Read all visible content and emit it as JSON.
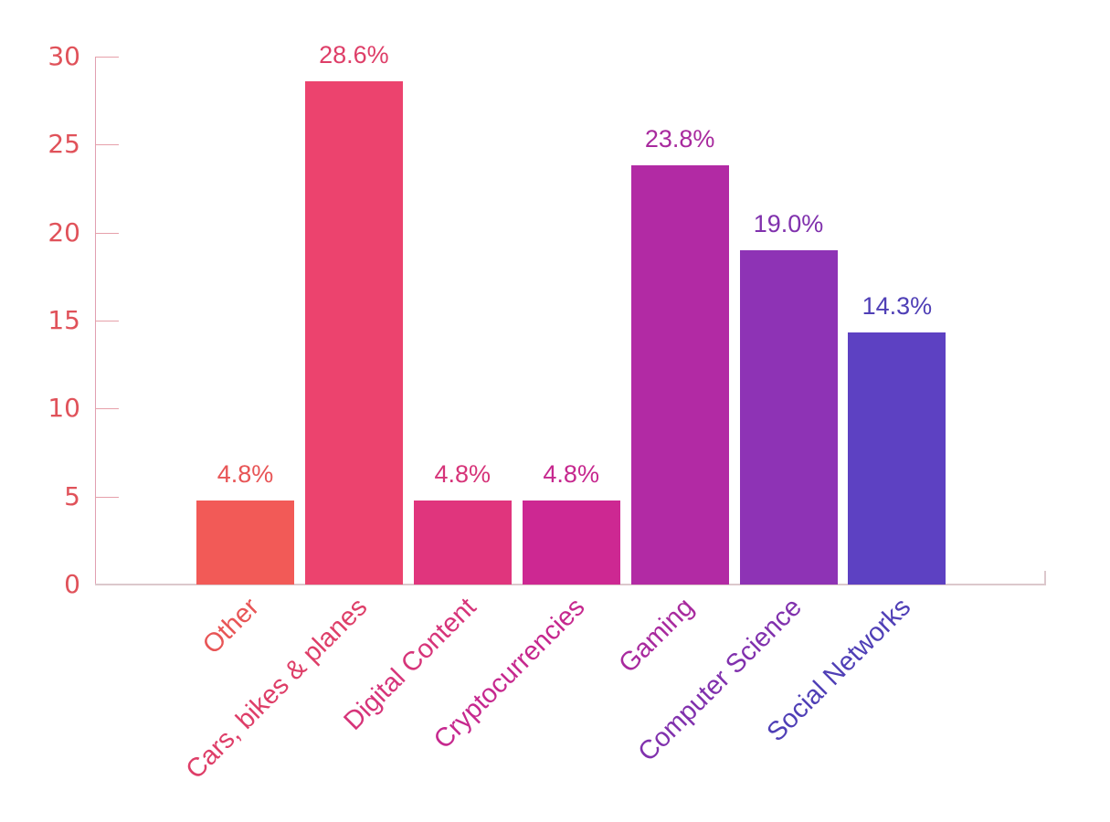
{
  "chart_data": {
    "type": "bar",
    "title": "",
    "xlabel": "",
    "ylabel": "",
    "ylim": [
      0,
      30
    ],
    "yticks": [
      0,
      5,
      10,
      15,
      20,
      25,
      30
    ],
    "grid": false,
    "legend": null,
    "categories": [
      "Other",
      "Cars, bikes & planes",
      "Digital Content",
      "Cryptocurrencies",
      "Gaming",
      "Computer Science",
      "Social Networks"
    ],
    "values": [
      4.8,
      28.6,
      4.8,
      4.8,
      23.8,
      19.0,
      14.3
    ],
    "value_labels": [
      "4.8%",
      "28.6%",
      "4.8%",
      "4.8%",
      "23.8%",
      "19.0%",
      "14.3%"
    ],
    "colors": [
      "#f25a57",
      "#ec436e",
      "#e0357d",
      "#cd2892",
      "#b22aa4",
      "#8e33b5",
      "#5d41c2"
    ],
    "label_colors": [
      "#e85556",
      "#de3e68",
      "#d63479",
      "#c6288e",
      "#a82a9e",
      "#8031ad",
      "#4f3fb6"
    ]
  },
  "yaxis": {
    "tick_labels": [
      "0",
      "5",
      "10",
      "15",
      "20",
      "25",
      "30"
    ],
    "color": "#e0525a"
  }
}
